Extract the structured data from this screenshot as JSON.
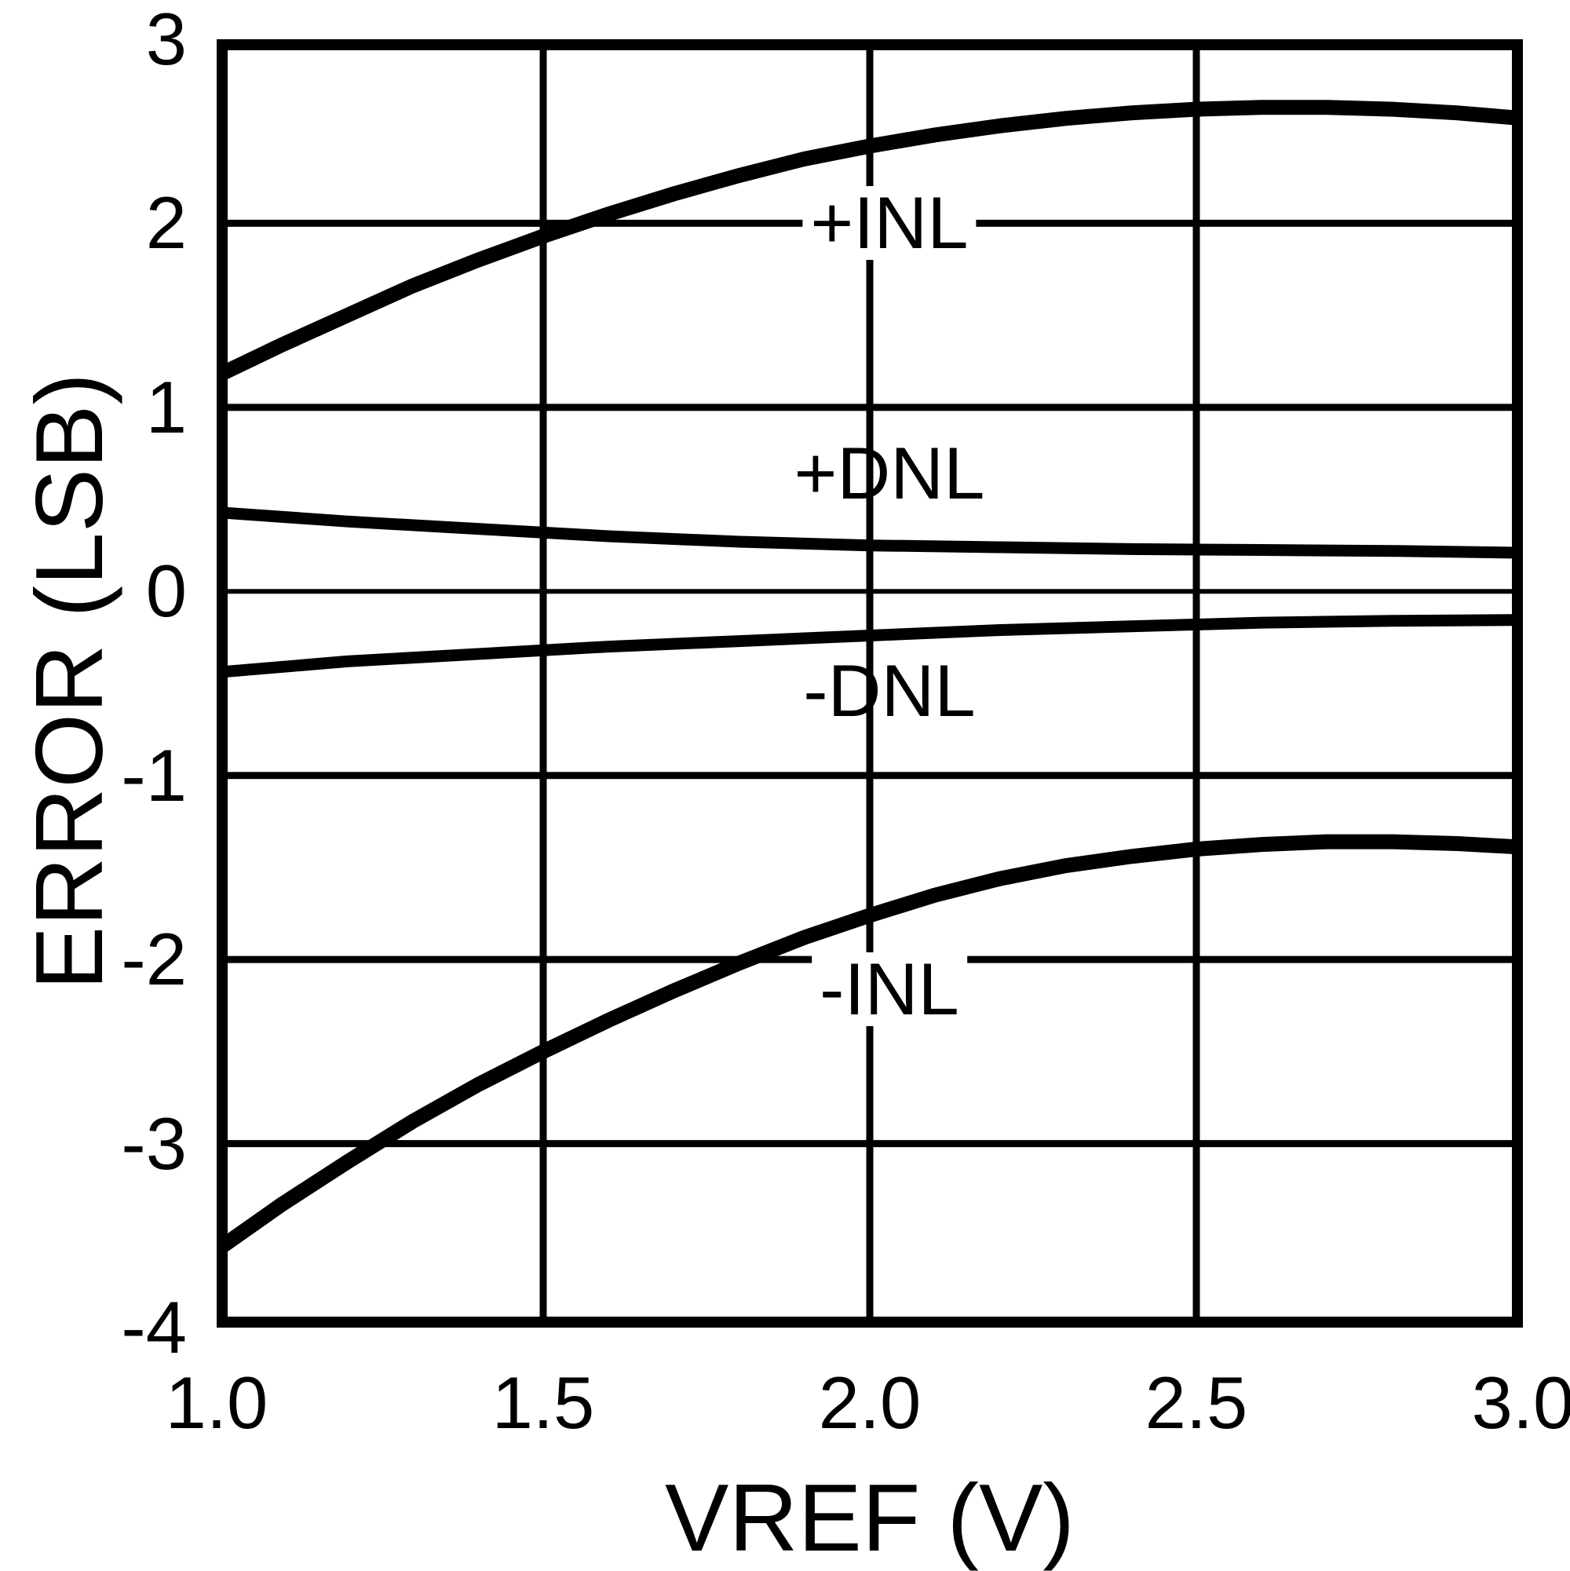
{
  "colors": {
    "ink": "#000000",
    "background": "#ffffff"
  },
  "chart_data": {
    "type": "line",
    "title": "",
    "xlabel": "VREF (V)",
    "ylabel": "ERROR (LSB)",
    "xlim": [
      1.0,
      3.0
    ],
    "ylim": [
      -4,
      3
    ],
    "grid": true,
    "legend_position": "inline-curve-labels",
    "xticks": {
      "values": [
        1.0,
        1.5,
        2.0,
        2.5,
        3.0
      ],
      "labels": [
        "1.0",
        "1.5",
        "2.0",
        "2.5",
        "3.0"
      ]
    },
    "yticks": {
      "values": [
        3,
        2,
        1,
        0,
        -1,
        -2,
        -3,
        -4
      ],
      "labels": [
        "3",
        "2",
        "1",
        "0",
        "-1",
        "-2",
        "-3",
        "-4"
      ]
    },
    "series": [
      {
        "name": "+INL",
        "label": "+INL",
        "label_at": [
          2.03,
          2.0
        ],
        "label_on_gridline": true,
        "x": [
          1.0,
          1.1,
          1.2,
          1.3,
          1.4,
          1.5,
          1.6,
          1.7,
          1.8,
          1.9,
          2.0,
          2.1,
          2.2,
          2.3,
          2.4,
          2.5,
          2.6,
          2.7,
          2.8,
          2.9,
          3.0
        ],
        "y": [
          1.17,
          1.34,
          1.5,
          1.66,
          1.8,
          1.93,
          2.05,
          2.16,
          2.26,
          2.35,
          2.42,
          2.48,
          2.53,
          2.57,
          2.6,
          2.62,
          2.63,
          2.63,
          2.62,
          2.6,
          2.57
        ]
      },
      {
        "name": "+DNL",
        "label": "+DNL",
        "label_at": [
          2.03,
          0.64
        ],
        "label_on_gridline": false,
        "x": [
          1.0,
          1.2,
          1.4,
          1.6,
          1.8,
          2.0,
          2.2,
          2.4,
          2.6,
          2.8,
          3.0
        ],
        "y": [
          0.43,
          0.38,
          0.34,
          0.3,
          0.27,
          0.25,
          0.24,
          0.23,
          0.225,
          0.22,
          0.21
        ]
      },
      {
        "name": "-DNL",
        "label": "-DNL",
        "label_at": [
          2.03,
          -0.54
        ],
        "label_on_gridline": false,
        "x": [
          1.0,
          1.2,
          1.4,
          1.6,
          1.8,
          2.0,
          2.2,
          2.4,
          2.6,
          2.8,
          3.0
        ],
        "y": [
          -0.44,
          -0.38,
          -0.34,
          -0.3,
          -0.27,
          -0.24,
          -0.21,
          -0.19,
          -0.17,
          -0.16,
          -0.155
        ]
      },
      {
        "name": "-INL",
        "label": "-INL",
        "label_at": [
          2.03,
          -2.16
        ],
        "label_on_gridline": true,
        "x": [
          1.0,
          1.1,
          1.2,
          1.3,
          1.4,
          1.5,
          1.6,
          1.7,
          1.8,
          1.9,
          2.0,
          2.1,
          2.2,
          2.3,
          2.4,
          2.5,
          2.6,
          2.7,
          2.8,
          2.9,
          3.0
        ],
        "y": [
          -3.58,
          -3.33,
          -3.1,
          -2.88,
          -2.68,
          -2.5,
          -2.33,
          -2.17,
          -2.02,
          -1.88,
          -1.76,
          -1.65,
          -1.56,
          -1.49,
          -1.44,
          -1.4,
          -1.375,
          -1.36,
          -1.36,
          -1.37,
          -1.39
        ]
      }
    ]
  }
}
